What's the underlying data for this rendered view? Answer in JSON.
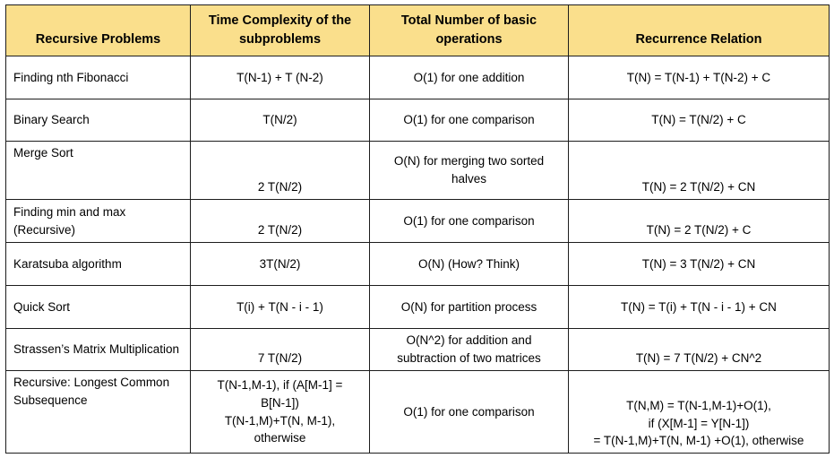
{
  "page": {
    "background": "#ffffff"
  },
  "table": {
    "header_bg": "#fadf8c",
    "border_color": "#1d1d1d",
    "text_color": "#000000",
    "columns": [
      "Recursive Problems",
      "Time Complexity of the subproblems",
      "Total Number of basic operations",
      "Recurrence Relation"
    ],
    "rows": [
      {
        "cells": [
          "Finding nth Fibonacci",
          "T(N-1) + T (N-2)",
          "O(1) for one addition",
          "T(N) = T(N-1) + T(N-2) + C"
        ]
      },
      {
        "cells": [
          "Binary Search",
          "T(N/2)",
          "O(1) for one comparison",
          "T(N) = T(N/2) + C"
        ]
      },
      {
        "cells": [
          "Merge Sort",
          "2 T(N/2)",
          "O(N) for merging two sorted halves",
          "T(N) = 2 T(N/2) + CN"
        ]
      },
      {
        "cells": [
          "Finding min and max (Recursive)",
          "2 T(N/2)",
          "O(1) for one comparison",
          "T(N) = 2 T(N/2) + C"
        ]
      },
      {
        "cells": [
          "Karatsuba algorithm",
          "3T(N/2)",
          "O(N) (How? Think)",
          "T(N) = 3 T(N/2) + CN"
        ]
      },
      {
        "cells": [
          "Quick Sort",
          "T(i) + T(N - i - 1)",
          "O(N) for partition process",
          "T(N) = T(i) + T(N - i - 1) + CN"
        ]
      },
      {
        "cells": [
          "Strassen’s Matrix Multiplication",
          "7 T(N/2)",
          "O(N^2) for addition and subtraction of two matrices",
          "T(N) = 7 T(N/2) + CN^2"
        ]
      },
      {
        "cells": [
          "Recursive: Longest Common Subsequence",
          "T(N-1,M-1), if (A[M-1] =\nB[N-1])\nT(N-1,M)+T(N, M-1),\notherwise",
          "O(1) for one comparison",
          "T(N,M) = T(N-1,M-1)+O(1),\nif (X[M-1] = Y[N-1])\n= T(N-1,M)+T(N, M-1) +O(1), otherwise"
        ]
      }
    ]
  }
}
